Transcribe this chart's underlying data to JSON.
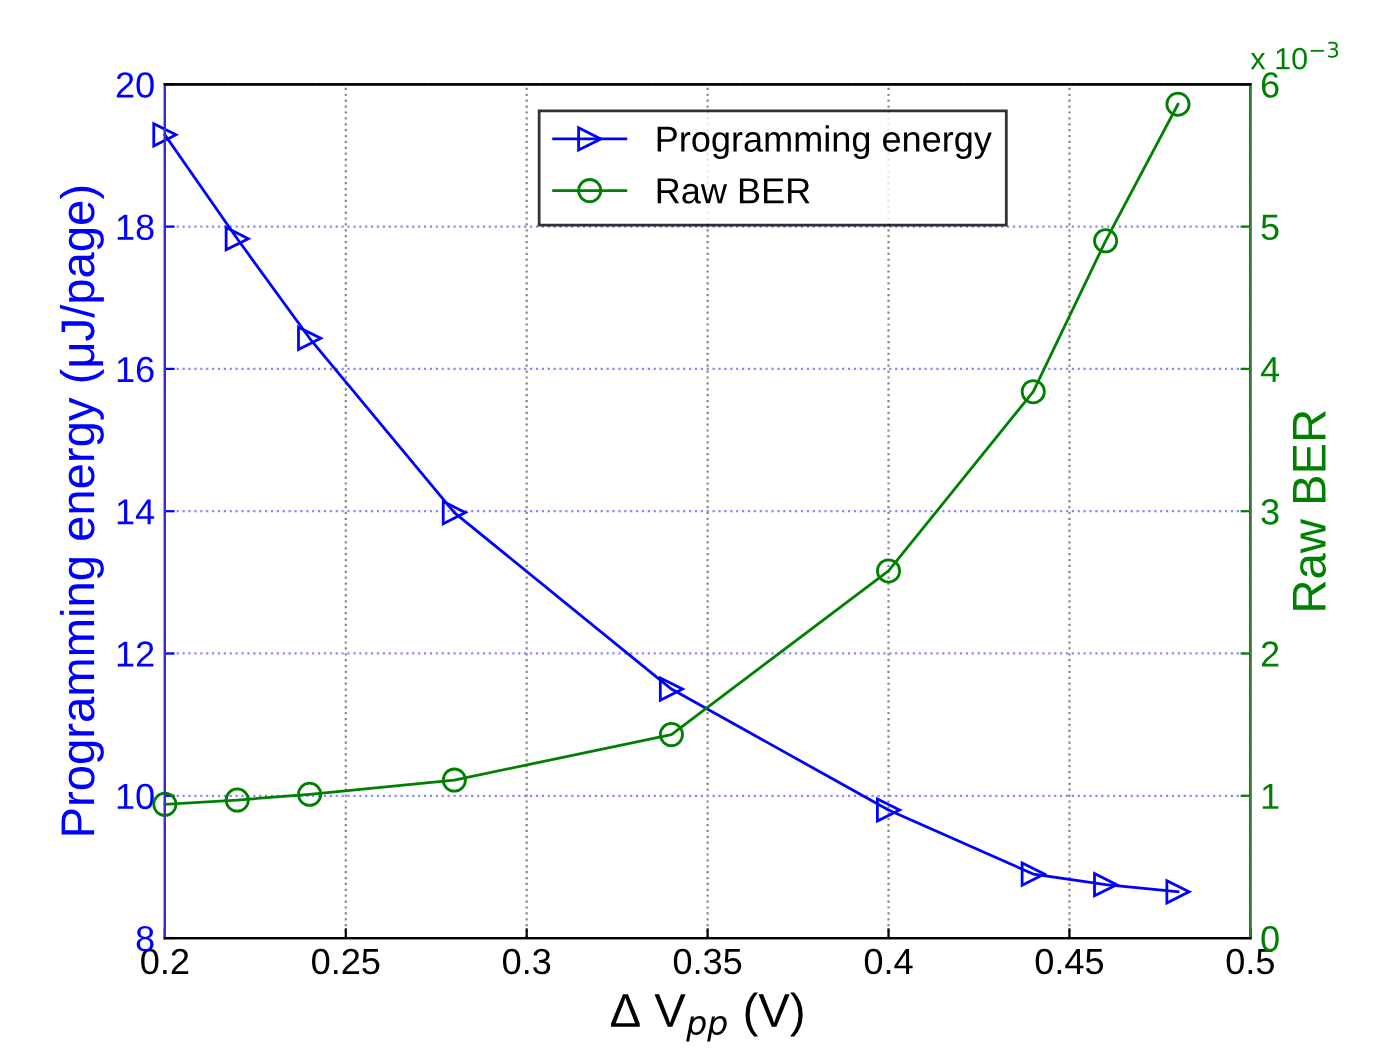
{
  "chart_data": {
    "type": "line",
    "xlabel": "Δ V$_{pp}$ (V)",
    "ylabel": "Programming energy (μJ/page)",
    "y2label": "Raw BER",
    "x": [
      0.2,
      0.22,
      0.24,
      0.28,
      0.34,
      0.4,
      0.44,
      0.46,
      0.48
    ],
    "series": [
      {
        "name": "Programming energy",
        "color": "#0000ff",
        "marker": "triangle",
        "values": [
          19.29,
          17.83,
          16.43,
          13.98,
          11.5,
          9.8,
          8.9,
          8.75,
          8.65
        ]
      },
      {
        "name": "Raw BER",
        "color": "#008000",
        "marker": "circle",
        "axis": "y2",
        "values": [
          0.94,
          0.97,
          1.01,
          1.11,
          1.43,
          2.58,
          3.84,
          4.9,
          5.86
        ]
      }
    ],
    "xlim": [
      0.2,
      0.5
    ],
    "xticks": [
      0.2,
      0.25,
      0.3,
      0.35,
      0.4,
      0.45,
      0.5
    ],
    "ylim": [
      8,
      20
    ],
    "yticks": [
      8,
      10,
      12,
      14,
      16,
      18,
      20
    ],
    "y2lim": [
      0,
      6
    ],
    "y2ticks": [
      0,
      1,
      2,
      3,
      4,
      5,
      6
    ],
    "annotations": [
      "x 10$^{−3}$"
    ],
    "grid": true,
    "legend": "top",
    "line_style": "solid"
  }
}
